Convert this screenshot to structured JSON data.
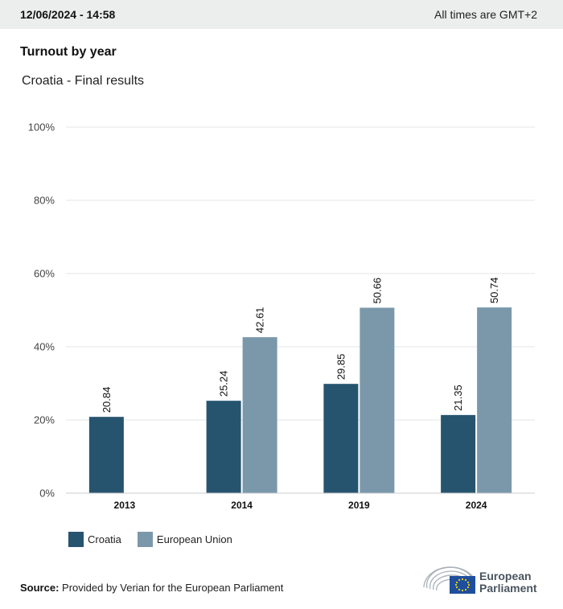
{
  "header": {
    "timestamp": "12/06/2024 - 14:58",
    "timezone_note": "All times are GMT+2"
  },
  "title": "Turnout by year",
  "subtitle": "Croatia - Final results",
  "chart_data": {
    "type": "bar",
    "categories": [
      "2013",
      "2014",
      "2019",
      "2024"
    ],
    "series": [
      {
        "name": "Croatia",
        "color": "#26546f",
        "values": [
          20.84,
          25.24,
          29.85,
          21.35
        ]
      },
      {
        "name": "European Union",
        "color": "#7b98ab",
        "values": [
          null,
          42.61,
          50.66,
          50.74
        ]
      }
    ],
    "ylim": [
      0,
      100
    ],
    "yticks": [
      0,
      20,
      40,
      60,
      80,
      100
    ],
    "ytick_labels": [
      "0%",
      "20%",
      "40%",
      "60%",
      "80%",
      "100%"
    ],
    "grid": true,
    "legend_position": "bottom-left"
  },
  "source": {
    "label": "Source:",
    "text": "Provided by Verian for the European Parliament"
  },
  "logo": {
    "line1": "European",
    "line2": "Parliament",
    "icon": "european-parliament-hemicycle-icon"
  }
}
